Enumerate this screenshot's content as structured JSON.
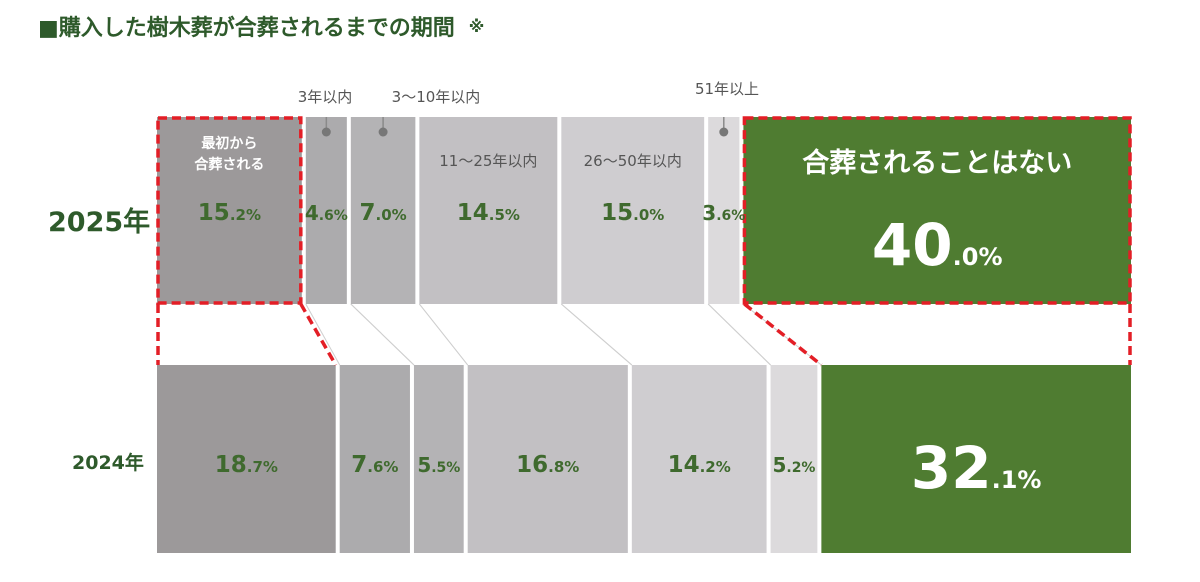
{
  "title": "■購入した樹木葬が合葬されるまでの期間",
  "title_note": "※",
  "chart_data": {
    "type": "bar",
    "orientation": "horizontal-stacked-100",
    "categories": [
      "最初から合葬される",
      "3年以内",
      "3〜10年以内",
      "11〜25年以内",
      "26〜50年以内",
      "51年以上",
      "合葬されることはない"
    ],
    "category_display": [
      [
        "最初から",
        "合葬される"
      ],
      [
        "3年以内"
      ],
      [
        "3〜10年以内"
      ],
      [
        "11〜25年以内"
      ],
      [
        "26〜50年以内"
      ],
      [
        "51年以上"
      ],
      [
        "合葬されることはない"
      ]
    ],
    "series": [
      {
        "name": "2025年",
        "values": [
          15.2,
          4.6,
          7.0,
          14.5,
          15.0,
          3.6,
          40.0
        ]
      },
      {
        "name": "2024年",
        "values": [
          18.7,
          7.6,
          5.5,
          16.8,
          14.2,
          5.2,
          32.1
        ]
      }
    ],
    "unit": "%",
    "highlighted_categories": [
      "最初から合葬される",
      "合葬されることはない"
    ],
    "colors": [
      "#9c999a",
      "#acabad",
      "#b4b3b5",
      "#c2c0c3",
      "#cfcdd0",
      "#dcdadc",
      "#4f7c31"
    ],
    "highlight_color": "#e31e26",
    "label_color": "#3f6a2e"
  }
}
